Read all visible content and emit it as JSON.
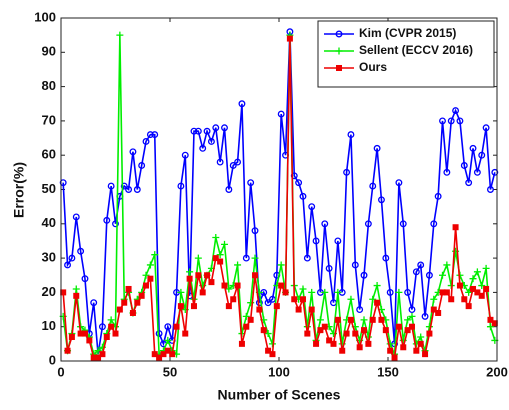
{
  "chart_data": {
    "type": "line",
    "xlabel": "Number of Scenes",
    "ylabel": "Error(%)",
    "xlim": [
      0,
      200
    ],
    "ylim": [
      0,
      100
    ],
    "xticks": [
      0,
      50,
      100,
      150,
      200
    ],
    "yticks": [
      0,
      10,
      20,
      30,
      40,
      50,
      60,
      70,
      80,
      90,
      100
    ],
    "legend": "upper right",
    "grid": false,
    "x": [
      1,
      3,
      5,
      7,
      9,
      11,
      13,
      15,
      17,
      19,
      21,
      23,
      25,
      27,
      29,
      31,
      33,
      35,
      37,
      39,
      41,
      43,
      45,
      47,
      49,
      51,
      53,
      55,
      57,
      59,
      61,
      63,
      65,
      67,
      69,
      71,
      73,
      75,
      77,
      79,
      81,
      83,
      85,
      87,
      89,
      91,
      93,
      95,
      97,
      99,
      101,
      103,
      105,
      107,
      109,
      111,
      113,
      115,
      117,
      119,
      121,
      123,
      125,
      127,
      129,
      131,
      133,
      135,
      137,
      139,
      141,
      143,
      145,
      147,
      149,
      151,
      153,
      155,
      157,
      159,
      161,
      163,
      165,
      167,
      169,
      171,
      173,
      175,
      177,
      179,
      181,
      183,
      185,
      187,
      189,
      191,
      193,
      195,
      197,
      199
    ],
    "series": [
      {
        "name": "Kim (CVPR 2015)",
        "color": "#0000ff",
        "marker": "circle",
        "values": [
          52,
          28,
          30,
          42,
          32,
          24,
          8,
          17,
          2,
          10,
          41,
          51,
          40,
          48,
          51,
          50,
          61,
          50,
          57,
          64,
          66,
          66,
          8,
          5,
          10,
          6,
          20,
          51,
          60,
          19,
          67,
          67,
          62,
          67,
          64,
          68,
          58,
          68,
          50,
          57,
          58,
          75,
          30,
          52,
          38,
          17,
          20,
          17,
          18,
          25,
          72,
          60,
          96,
          54,
          52,
          48,
          30,
          45,
          35,
          20,
          40,
          27,
          17,
          35,
          20,
          55,
          66,
          28,
          15,
          25,
          40,
          51,
          62,
          47,
          30,
          20,
          5,
          52,
          40,
          20,
          15,
          26,
          28,
          13,
          25,
          40,
          48,
          70,
          55,
          70,
          73,
          70,
          57,
          52,
          62,
          55,
          60,
          68,
          50,
          55
        ]
      },
      {
        "name": "Sellent (ECCV 2016)",
        "color": "#00ee00",
        "marker": "plus",
        "values": [
          13,
          3,
          8,
          21,
          10,
          9,
          7,
          2,
          3,
          4,
          8,
          12,
          10,
          95,
          18,
          20,
          14,
          18,
          20,
          25,
          28,
          31,
          2,
          3,
          6,
          3,
          2,
          20,
          15,
          26,
          18,
          30,
          22,
          25,
          27,
          36,
          31,
          34,
          21,
          22,
          28,
          8,
          13,
          17,
          30,
          20,
          12,
          8,
          5,
          22,
          28,
          20,
          95,
          22,
          18,
          21,
          10,
          20,
          6,
          12,
          20,
          10,
          8,
          20,
          5,
          12,
          18,
          10,
          6,
          12,
          7,
          18,
          22,
          15,
          12,
          5,
          2,
          20,
          6,
          12,
          13,
          5,
          7,
          3,
          10,
          18,
          20,
          25,
          28,
          22,
          32,
          25,
          22,
          20,
          24,
          26,
          22,
          27,
          10,
          6
        ]
      },
      {
        "name": "Ours",
        "color": "#ee0000",
        "marker": "square",
        "values": [
          20,
          3,
          7,
          19,
          8,
          8,
          6,
          1,
          1,
          2,
          7,
          10,
          8,
          15,
          17,
          21,
          14,
          17,
          19,
          22,
          24,
          2,
          1,
          2,
          3,
          2,
          10,
          16,
          8,
          24,
          16,
          25,
          20,
          25,
          23,
          30,
          29,
          22,
          16,
          18,
          22,
          5,
          10,
          12,
          25,
          15,
          9,
          3,
          2,
          16,
          22,
          20,
          94,
          18,
          15,
          18,
          8,
          15,
          5,
          9,
          10,
          6,
          5,
          12,
          3,
          8,
          12,
          8,
          4,
          9,
          5,
          12,
          17,
          12,
          9,
          3,
          1,
          10,
          4,
          9,
          10,
          3,
          5,
          2,
          8,
          15,
          14,
          20,
          20,
          18,
          39,
          22,
          18,
          16,
          21,
          20,
          19,
          21,
          12,
          11
        ]
      }
    ]
  }
}
